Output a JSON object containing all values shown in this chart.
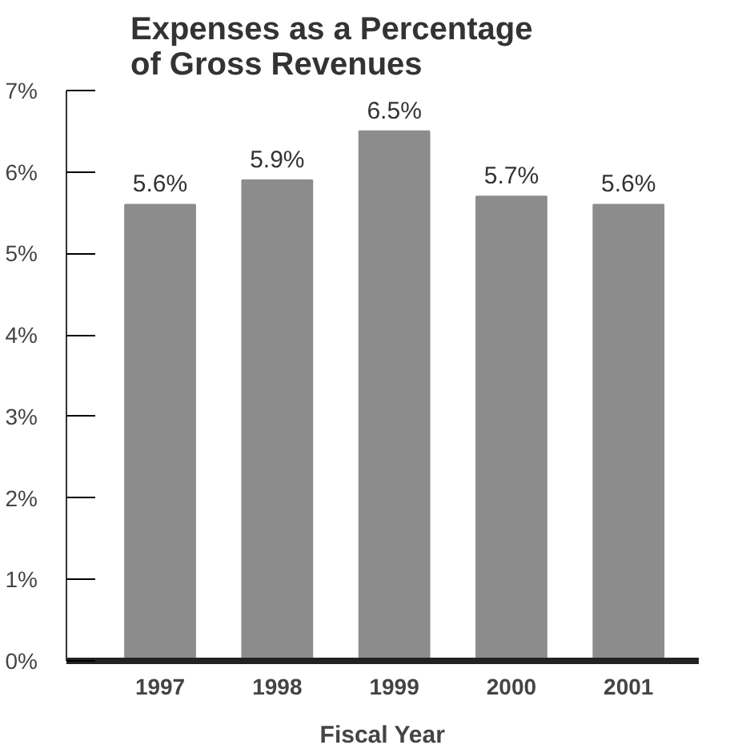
{
  "chart_data": {
    "type": "bar",
    "title": "Expenses as a Percentage\nof Gross Revenues",
    "xlabel": "Fiscal Year",
    "categories": [
      "1997",
      "1998",
      "1999",
      "2000",
      "2001"
    ],
    "values": [
      5.6,
      5.9,
      6.5,
      5.7,
      5.6
    ],
    "value_labels": [
      "5.6%",
      "5.9%",
      "6.5%",
      "5.7%",
      "5.6%"
    ],
    "color": "#8c8c8c",
    "ylim": [
      0,
      7
    ],
    "yticks": [
      {
        "value": 0,
        "label": "0%"
      },
      {
        "value": 1,
        "label": "1%"
      },
      {
        "value": 2,
        "label": "2%"
      },
      {
        "value": 3,
        "label": "3%"
      },
      {
        "value": 4,
        "label": "4%"
      },
      {
        "value": 5,
        "label": "5%"
      },
      {
        "value": 6,
        "label": "6%"
      },
      {
        "value": 7,
        "label": "7%"
      }
    ],
    "grid": false
  }
}
